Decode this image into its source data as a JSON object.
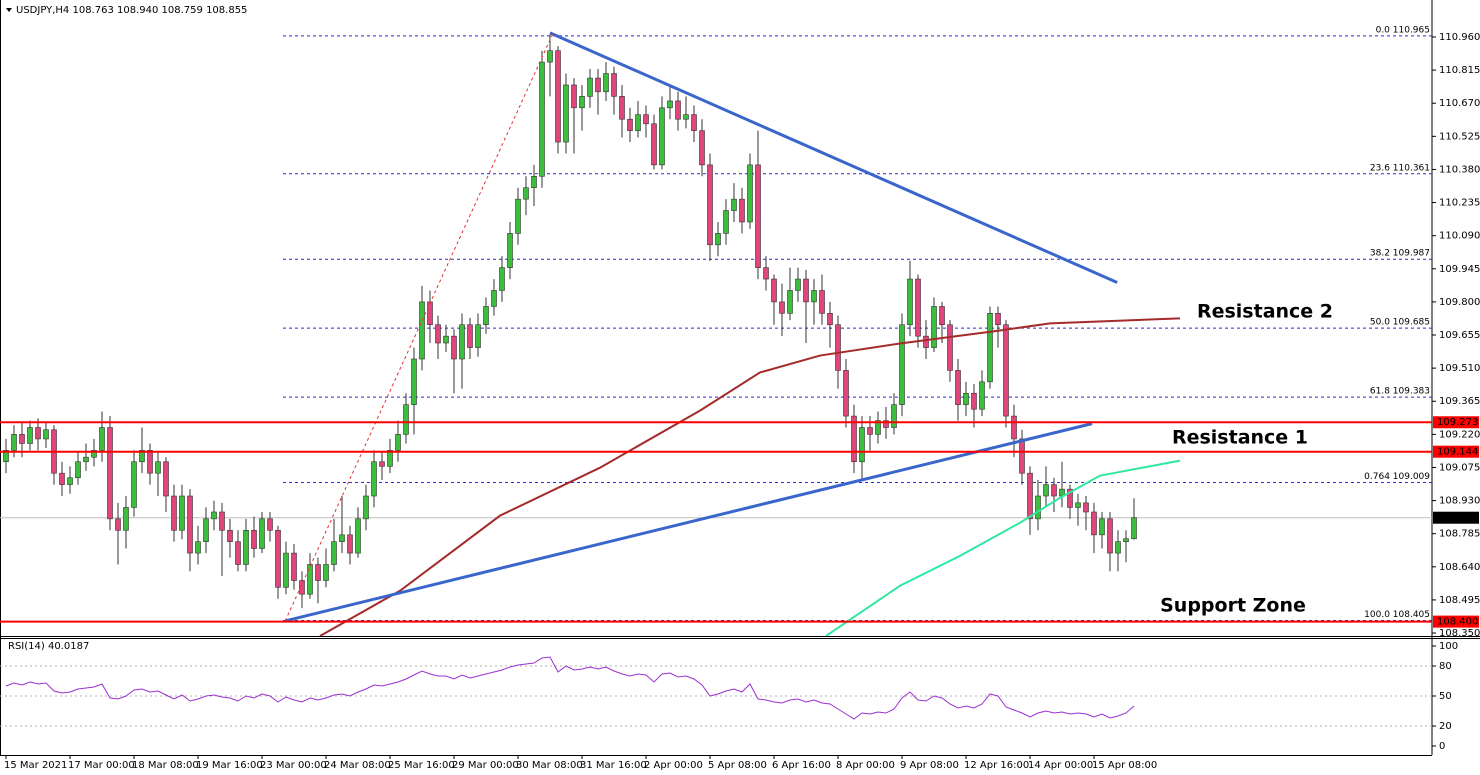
{
  "chart_data": {
    "type": "candlestick",
    "title": "USDJPY,H4  108.763 108.940 108.759 108.855",
    "categories": [
      "15 Mar 2021",
      null,
      null,
      null,
      null,
      null,
      null,
      null,
      "17 Mar 00:00",
      null,
      null,
      null,
      null,
      null,
      null,
      null,
      "18 Mar 08:00",
      null,
      null,
      null,
      null,
      null,
      null,
      null,
      "19 Mar 16:00",
      null,
      null,
      null,
      null,
      null,
      null,
      null,
      "23 Mar 00:00",
      null,
      null,
      null,
      null,
      null,
      null,
      null,
      "24 Mar 08:00",
      null,
      null,
      null,
      null,
      null,
      null,
      null,
      "25 Mar 16:00",
      null,
      null,
      null,
      null,
      null,
      null,
      null,
      "29 Mar 00:00",
      null,
      null,
      null,
      null,
      null,
      null,
      null,
      "30 Mar 08:00",
      null,
      null,
      null,
      null,
      null,
      null,
      null,
      "31 Mar 16:00",
      null,
      null,
      null,
      null,
      null,
      null,
      null,
      "2 Apr 00:00",
      null,
      null,
      null,
      null,
      null,
      null,
      null,
      "5 Apr 08:00",
      null,
      null,
      null,
      null,
      null,
      null,
      null,
      "6 Apr 16:00",
      null,
      null,
      null,
      null,
      null,
      null,
      null,
      "8 Apr 00:00",
      null,
      null,
      null,
      null,
      null,
      null,
      null,
      "9 Apr 08:00",
      null,
      null,
      null,
      null,
      null,
      null,
      null,
      "12 Apr 16:00",
      null,
      null,
      null,
      null,
      null,
      null,
      null,
      "14 Apr 00:00",
      null,
      null,
      null,
      null,
      null,
      null,
      null,
      "15 Apr 08:00",
      null,
      null,
      null,
      null,
      null
    ],
    "ohlc": [
      [
        109.1,
        109.2,
        109.05,
        109.15
      ],
      [
        109.15,
        109.26,
        109.12,
        109.22
      ],
      [
        109.22,
        109.27,
        109.12,
        109.18
      ],
      [
        109.18,
        109.28,
        109.15,
        109.25
      ],
      [
        109.25,
        109.29,
        109.15,
        109.2
      ],
      [
        109.2,
        109.27,
        109.16,
        109.24
      ],
      [
        109.24,
        109.26,
        109.0,
        109.05
      ],
      [
        109.05,
        109.1,
        108.95,
        109.0
      ],
      [
        109.0,
        109.08,
        108.96,
        109.03
      ],
      [
        109.03,
        109.14,
        109.0,
        109.1
      ],
      [
        109.1,
        109.18,
        109.06,
        109.12
      ],
      [
        109.12,
        109.2,
        109.08,
        109.15
      ],
      [
        109.15,
        109.32,
        109.1,
        109.25
      ],
      [
        109.25,
        109.3,
        108.8,
        108.85
      ],
      [
        108.85,
        108.92,
        108.65,
        108.8
      ],
      [
        108.8,
        108.95,
        108.72,
        108.9
      ],
      [
        108.9,
        109.15,
        108.86,
        109.1
      ],
      [
        109.1,
        109.25,
        109.05,
        109.15
      ],
      [
        109.15,
        109.18,
        109.0,
        109.05
      ],
      [
        109.05,
        109.14,
        108.95,
        109.1
      ],
      [
        109.1,
        109.12,
        108.88,
        108.95
      ],
      [
        108.95,
        109.0,
        108.75,
        108.8
      ],
      [
        108.8,
        109.0,
        108.76,
        108.95
      ],
      [
        108.95,
        108.98,
        108.62,
        108.7
      ],
      [
        108.7,
        108.82,
        108.65,
        108.75
      ],
      [
        108.75,
        108.9,
        108.7,
        108.85
      ],
      [
        108.85,
        108.93,
        108.8,
        108.88
      ],
      [
        108.88,
        108.92,
        108.6,
        108.8
      ],
      [
        108.8,
        108.85,
        108.68,
        108.75
      ],
      [
        108.75,
        108.8,
        108.62,
        108.65
      ],
      [
        108.65,
        108.85,
        108.62,
        108.8
      ],
      [
        108.8,
        108.86,
        108.68,
        108.72
      ],
      [
        108.72,
        108.88,
        108.7,
        108.85
      ],
      [
        108.85,
        108.88,
        108.75,
        108.8
      ],
      [
        108.8,
        108.82,
        108.5,
        108.55
      ],
      [
        108.55,
        108.75,
        108.52,
        108.7
      ],
      [
        108.7,
        108.74,
        108.54,
        108.58
      ],
      [
        108.58,
        108.62,
        108.46,
        108.52
      ],
      [
        108.52,
        108.7,
        108.5,
        108.65
      ],
      [
        108.65,
        108.68,
        108.48,
        108.58
      ],
      [
        108.58,
        108.72,
        108.55,
        108.65
      ],
      [
        108.65,
        108.85,
        108.62,
        108.75
      ],
      [
        108.75,
        108.95,
        108.7,
        108.78
      ],
      [
        108.78,
        108.82,
        108.65,
        108.7
      ],
      [
        108.7,
        108.9,
        108.68,
        108.85
      ],
      [
        108.85,
        109.0,
        108.8,
        108.95
      ],
      [
        108.95,
        109.15,
        108.9,
        109.1
      ],
      [
        109.1,
        109.14,
        109.02,
        109.08
      ],
      [
        109.08,
        109.2,
        109.05,
        109.15
      ],
      [
        109.15,
        109.28,
        109.1,
        109.22
      ],
      [
        109.22,
        109.4,
        109.18,
        109.35
      ],
      [
        109.35,
        109.6,
        109.22,
        109.55
      ],
      [
        109.55,
        109.87,
        109.5,
        109.8
      ],
      [
        109.8,
        109.85,
        109.62,
        109.7
      ],
      [
        109.7,
        109.74,
        109.55,
        109.62
      ],
      [
        109.62,
        109.7,
        109.58,
        109.65
      ],
      [
        109.65,
        109.68,
        109.4,
        109.55
      ],
      [
        109.55,
        109.75,
        109.42,
        109.7
      ],
      [
        109.7,
        109.73,
        109.55,
        109.6
      ],
      [
        109.6,
        109.75,
        109.56,
        109.7
      ],
      [
        109.7,
        109.82,
        109.66,
        109.78
      ],
      [
        109.78,
        109.9,
        109.74,
        109.85
      ],
      [
        109.85,
        110.0,
        109.8,
        109.95
      ],
      [
        109.95,
        110.15,
        109.9,
        110.1
      ],
      [
        110.1,
        110.3,
        110.05,
        110.25
      ],
      [
        110.25,
        110.35,
        110.18,
        110.3
      ],
      [
        110.3,
        110.4,
        110.22,
        110.35
      ],
      [
        110.35,
        110.9,
        110.3,
        110.85
      ],
      [
        110.85,
        110.97,
        110.7,
        110.9
      ],
      [
        110.9,
        110.92,
        110.45,
        110.5
      ],
      [
        110.5,
        110.8,
        110.45,
        110.75
      ],
      [
        110.75,
        110.78,
        110.45,
        110.65
      ],
      [
        110.65,
        110.75,
        110.55,
        110.7
      ],
      [
        110.7,
        110.82,
        110.65,
        110.78
      ],
      [
        110.78,
        110.82,
        110.62,
        110.72
      ],
      [
        110.72,
        110.85,
        110.68,
        110.8
      ],
      [
        110.8,
        110.83,
        110.62,
        110.7
      ],
      [
        110.7,
        110.75,
        110.52,
        110.6
      ],
      [
        110.6,
        110.65,
        110.5,
        110.55
      ],
      [
        110.55,
        110.68,
        110.52,
        110.62
      ],
      [
        110.62,
        110.66,
        110.52,
        110.58
      ],
      [
        110.58,
        110.62,
        110.38,
        110.4
      ],
      [
        110.4,
        110.7,
        110.38,
        110.65
      ],
      [
        110.65,
        110.75,
        110.6,
        110.68
      ],
      [
        110.68,
        110.72,
        110.55,
        110.6
      ],
      [
        110.6,
        110.7,
        110.56,
        110.62
      ],
      [
        110.62,
        110.66,
        110.5,
        110.55
      ],
      [
        110.55,
        110.6,
        110.35,
        110.4
      ],
      [
        110.4,
        110.45,
        109.98,
        110.05
      ],
      [
        110.05,
        110.15,
        110.0,
        110.1
      ],
      [
        110.1,
        110.25,
        110.05,
        110.2
      ],
      [
        110.2,
        110.32,
        110.15,
        110.25
      ],
      [
        110.25,
        110.3,
        110.1,
        110.15
      ],
      [
        110.15,
        110.45,
        110.12,
        110.4
      ],
      [
        110.4,
        110.55,
        109.9,
        109.95
      ],
      [
        109.95,
        110.0,
        109.85,
        109.9
      ],
      [
        109.9,
        109.92,
        109.7,
        109.8
      ],
      [
        109.8,
        109.88,
        109.65,
        109.75
      ],
      [
        109.75,
        109.95,
        109.72,
        109.85
      ],
      [
        109.85,
        109.95,
        109.8,
        109.9
      ],
      [
        109.9,
        109.94,
        109.62,
        109.8
      ],
      [
        109.8,
        109.9,
        109.7,
        109.85
      ],
      [
        109.85,
        109.92,
        109.7,
        109.75
      ],
      [
        109.75,
        109.8,
        109.6,
        109.7
      ],
      [
        109.7,
        109.74,
        109.42,
        109.5
      ],
      [
        109.5,
        109.55,
        109.25,
        109.3
      ],
      [
        109.3,
        109.35,
        109.05,
        109.1
      ],
      [
        109.1,
        109.3,
        109.02,
        109.25
      ],
      [
        109.25,
        109.3,
        109.15,
        109.22
      ],
      [
        109.22,
        109.32,
        109.18,
        109.28
      ],
      [
        109.28,
        109.34,
        109.2,
        109.25
      ],
      [
        109.25,
        109.4,
        109.22,
        109.35
      ],
      [
        109.35,
        109.75,
        109.3,
        109.7
      ],
      [
        109.7,
        109.98,
        109.65,
        109.9
      ],
      [
        109.9,
        109.92,
        109.6,
        109.65
      ],
      [
        109.65,
        109.72,
        109.55,
        109.6
      ],
      [
        109.6,
        109.82,
        109.58,
        109.78
      ],
      [
        109.78,
        109.8,
        109.62,
        109.7
      ],
      [
        109.7,
        109.72,
        109.45,
        109.5
      ],
      [
        109.5,
        109.55,
        109.28,
        109.35
      ],
      [
        109.35,
        109.45,
        109.3,
        109.4
      ],
      [
        109.4,
        109.44,
        109.25,
        109.33
      ],
      [
        109.33,
        109.5,
        109.3,
        109.45
      ],
      [
        109.45,
        109.78,
        109.42,
        109.75
      ],
      [
        109.75,
        109.78,
        109.6,
        109.7
      ],
      [
        109.7,
        109.72,
        109.25,
        109.3
      ],
      [
        109.3,
        109.35,
        109.12,
        109.2
      ],
      [
        109.2,
        109.24,
        109.0,
        109.05
      ],
      [
        109.05,
        109.08,
        108.78,
        108.85
      ],
      [
        108.85,
        109.02,
        108.8,
        108.95
      ],
      [
        108.95,
        109.08,
        108.9,
        109.0
      ],
      [
        109.0,
        109.03,
        108.88,
        108.95
      ],
      [
        108.95,
        109.1,
        108.9,
        108.98
      ],
      [
        108.98,
        109.0,
        108.85,
        108.9
      ],
      [
        108.9,
        108.96,
        108.82,
        108.92
      ],
      [
        108.92,
        108.95,
        108.8,
        108.88
      ],
      [
        108.88,
        108.92,
        108.7,
        108.78
      ],
      [
        108.78,
        108.88,
        108.72,
        108.85
      ],
      [
        108.85,
        108.88,
        108.62,
        108.7
      ],
      [
        108.7,
        108.8,
        108.62,
        108.75
      ],
      [
        108.75,
        108.8,
        108.66,
        108.763
      ],
      [
        108.763,
        108.94,
        108.759,
        108.855
      ]
    ],
    "up_color": "#3cbf3c",
    "down_color": "#e0457b",
    "ylim": [
      108.337,
      111.122
    ],
    "yticks": [
      {
        "value": 110.96,
        "label": "110.960"
      },
      110.815,
      {
        "value": 110.67,
        "label": "110.670"
      },
      110.525,
      {
        "value": 110.38,
        "label": "110.380"
      },
      110.235,
      {
        "value": 110.09,
        "label": "110.090"
      },
      109.945,
      {
        "value": 109.8,
        "label": "109.800"
      },
      109.655,
      {
        "value": 109.51,
        "label": "109.510"
      },
      109.365,
      {
        "value": 109.22,
        "label": "109.220"
      },
      109.075,
      {
        "value": 108.93,
        "label": "108.930"
      },
      108.785,
      {
        "value": 108.64,
        "label": "108.640"
      },
      108.495,
      {
        "value": 108.35,
        "label": "108.350"
      }
    ],
    "fib_color": "#2b2bd0",
    "fib_levels": [
      {
        "value": 110.965,
        "label": "0.0 110.965"
      },
      {
        "value": 110.361,
        "label": "23.6 110.361"
      },
      {
        "value": 109.987,
        "label": "38.2 109.987"
      },
      {
        "value": 109.685,
        "label": "50.0 109.685"
      },
      {
        "value": 109.383,
        "label": "61.8 109.383"
      },
      {
        "value": 109.009,
        "label": "0.764 109.009"
      },
      {
        "value": 108.405,
        "label": "100.0 108.405"
      }
    ],
    "hlines": [
      {
        "value": 109.273,
        "color": "#ff0000"
      },
      {
        "value": 109.144,
        "color": "#ff0000"
      },
      {
        "value": 108.4,
        "label": "108.400",
        "color": "#ff0000"
      }
    ],
    "last_price": 108.855,
    "trend_lines": [
      {
        "color": "#3a66cc",
        "x": [
          68,
          138.9
        ],
        "values": [
          110.978,
          109.885
        ]
      },
      {
        "color": "#3a66cc",
        "x": [
          34.9,
          135.75
        ],
        "values": [
          108.403,
          109.267
        ]
      },
      {
        "color": "#e03030",
        "dashed": true,
        "x": [
          34.9,
          68.4
        ],
        "values": [
          108.403,
          110.978
        ]
      }
    ],
    "moving_averages": [
      {
        "color": "#a52a2a",
        "x": [
          39.25,
          49.25,
          61.75,
          74.25,
          86.75,
          94.25,
          101.75,
          111.75,
          124.25,
          130.5,
          146.75
        ],
        "values": [
          108.337,
          108.535,
          108.864,
          109.074,
          109.324,
          109.491,
          109.565,
          109.618,
          109.675,
          109.706,
          109.728
        ]
      },
      {
        "color": "#2ee8a0",
        "x": [
          102.5,
          111.75,
          119.25,
          126.75,
          131.75,
          136.75,
          146.75
        ],
        "values": [
          108.337,
          108.557,
          108.688,
          108.833,
          108.942,
          109.039,
          109.105
        ]
      }
    ],
    "annotations": [
      {
        "text": "Resistance 2",
        "color": "#e4262c"
      },
      {
        "text": "Resistance 1",
        "color": "#e4262c"
      },
      {
        "text": "Support Zone",
        "color": "#22b14c"
      }
    ],
    "rsi": {
      "type": "line",
      "title": "RSI(14) 40.0187",
      "color": "#9b30d0",
      "ylim": [
        -9,
        108
      ],
      "yticks": [
        100,
        80,
        50,
        20,
        0
      ],
      "values": [
        60,
        63,
        61,
        64,
        62,
        63,
        55,
        53,
        54,
        57,
        58,
        59,
        62,
        48,
        47,
        50,
        56,
        57,
        54,
        55,
        51,
        47,
        51,
        45,
        47,
        50,
        51,
        49,
        48,
        45,
        50,
        48,
        52,
        50,
        44,
        49,
        46,
        44,
        48,
        46,
        48,
        51,
        52,
        50,
        54,
        57,
        61,
        60,
        62,
        64,
        67,
        71,
        75,
        72,
        70,
        70,
        67,
        71,
        68,
        70,
        72,
        74,
        76,
        79,
        81,
        82,
        83,
        88,
        89,
        74,
        80,
        76,
        77,
        79,
        77,
        79,
        75,
        72,
        70,
        72,
        71,
        64,
        72,
        73,
        69,
        70,
        67,
        61,
        50,
        52,
        55,
        57,
        54,
        62,
        47,
        46,
        44,
        43,
        46,
        47,
        44,
        46,
        43,
        42,
        37,
        32,
        27,
        33,
        32,
        34,
        33,
        37,
        48,
        54,
        46,
        45,
        50,
        48,
        42,
        38,
        40,
        38,
        42,
        52,
        50,
        39,
        36,
        33,
        29,
        33,
        35,
        33,
        34,
        32,
        33,
        32,
        29,
        32,
        28,
        30,
        33,
        40.0187
      ]
    }
  }
}
